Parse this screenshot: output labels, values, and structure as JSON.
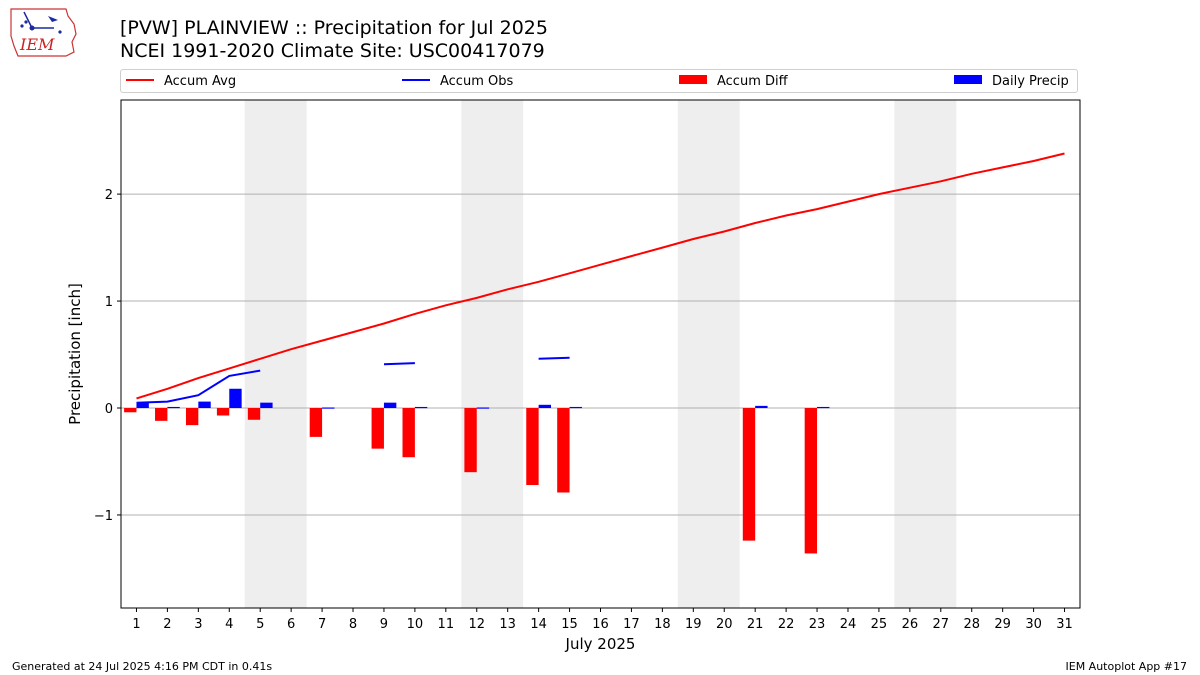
{
  "header": {
    "logo_text": "IEM",
    "title_line1": "[PVW] PLAINVIEW :: Precipitation for Jul 2025",
    "title_line2": "NCEI 1991-2020 Climate Site: USC00417079"
  },
  "legend": [
    {
      "label": "Accum Avg",
      "kind": "line",
      "color": "#ff0000"
    },
    {
      "label": "Accum Obs",
      "kind": "line",
      "color": "#0000ff"
    },
    {
      "label": "Accum Diff",
      "kind": "patch",
      "color": "#ff0000"
    },
    {
      "label": "Daily Precip",
      "kind": "patch",
      "color": "#0000ff"
    }
  ],
  "footer": {
    "generated": "Generated at 24 Jul 2025 4:16 PM CDT in 0.41s",
    "app": "IEM Autoplot App #17"
  },
  "chart_data": {
    "type": "bar",
    "xlabel": "July 2025",
    "ylabel": "Precipitation [inch]",
    "ylim": [
      -1.87,
      2.88
    ],
    "xlim": [
      0.5,
      31.5
    ],
    "y_ticks": [
      -1,
      0,
      1,
      2
    ],
    "y_tick_labels": [
      "−1",
      "0",
      "1",
      "2"
    ],
    "x_ticks": [
      1,
      2,
      3,
      4,
      5,
      6,
      7,
      8,
      9,
      10,
      11,
      12,
      13,
      14,
      15,
      16,
      17,
      18,
      19,
      20,
      21,
      22,
      23,
      24,
      25,
      26,
      27,
      28,
      29,
      30,
      31
    ],
    "grid": "horizontal",
    "weekend_shading": [
      [
        4.5,
        6.5
      ],
      [
        11.5,
        13.5
      ],
      [
        18.5,
        20.5
      ],
      [
        25.5,
        27.5
      ]
    ],
    "colors": {
      "avg": "#ff0000",
      "obs": "#0000ff",
      "diff": "#ff0000",
      "daily": "#0000ff",
      "shade": "#eeeeee",
      "grid": "#b0b0b0"
    },
    "accum_avg": {
      "x": [
        1,
        2,
        3,
        4,
        5,
        6,
        7,
        8,
        9,
        10,
        11,
        12,
        13,
        14,
        15,
        16,
        17,
        18,
        19,
        20,
        21,
        22,
        23,
        24,
        25,
        26,
        27,
        28,
        29,
        30,
        31
      ],
      "y": [
        0.09,
        0.18,
        0.28,
        0.37,
        0.46,
        0.55,
        0.63,
        0.71,
        0.79,
        0.88,
        0.96,
        1.03,
        1.11,
        1.18,
        1.26,
        1.34,
        1.42,
        1.5,
        1.58,
        1.65,
        1.73,
        1.8,
        1.86,
        1.93,
        2.0,
        2.06,
        2.12,
        2.19,
        2.25,
        2.31,
        2.38
      ]
    },
    "accum_obs": [
      {
        "x": [
          1,
          2,
          3,
          4,
          5
        ],
        "y": [
          0.05,
          0.06,
          0.12,
          0.3,
          0.35
        ]
      },
      {
        "x": [
          9,
          10
        ],
        "y": [
          0.41,
          0.42
        ]
      },
      {
        "x": [
          14,
          15
        ],
        "y": [
          0.46,
          0.47
        ]
      }
    ],
    "accum_diff": {
      "x": [
        1,
        2,
        3,
        4,
        5,
        7,
        9,
        10,
        12,
        14,
        15,
        21,
        23
      ],
      "y": [
        -0.04,
        -0.12,
        -0.16,
        -0.07,
        -0.11,
        -0.27,
        -0.38,
        -0.46,
        -0.6,
        -0.72,
        -0.79,
        -1.24,
        -1.36
      ]
    },
    "daily_precip": {
      "x": [
        1,
        2,
        3,
        4,
        5,
        7,
        9,
        10,
        12,
        14,
        15,
        21,
        23
      ],
      "y": [
        0.05,
        0.01,
        0.06,
        0.18,
        0.05,
        0.005,
        0.05,
        0.01,
        0.005,
        0.03,
        0.01,
        0.02,
        0.01
      ]
    }
  }
}
